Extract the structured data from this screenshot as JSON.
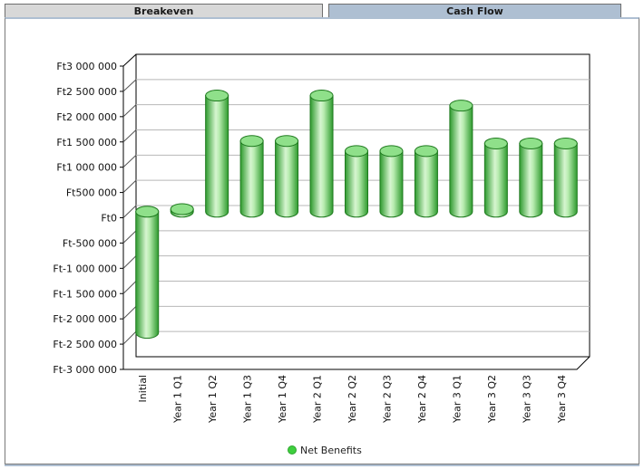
{
  "tabs": [
    {
      "label": "Breakeven",
      "active": false
    },
    {
      "label": "Cash Flow",
      "active": true
    }
  ],
  "chart_data": {
    "type": "bar",
    "bar_shape": "cylinder",
    "categories": [
      "Initial",
      "Year 1 Q1",
      "Year 1 Q2",
      "Year 1 Q3",
      "Year 1 Q4",
      "Year 2 Q1",
      "Year 2 Q2",
      "Year 2 Q3",
      "Year 2 Q4",
      "Year 3 Q1",
      "Year 3 Q2",
      "Year 3 Q3",
      "Year 3 Q4"
    ],
    "series": [
      {
        "name": "Net Benefits",
        "color": "#3ecf3e",
        "values": [
          -2400000,
          50000,
          2300000,
          1400000,
          1400000,
          2300000,
          1200000,
          1200000,
          1200000,
          2100000,
          1350000,
          1350000,
          1350000
        ]
      }
    ],
    "ylim": [
      -3000000,
      3000000
    ],
    "yticks": [
      {
        "value": 3000000,
        "label": "Ft3 000 000"
      },
      {
        "value": 2500000,
        "label": "Ft2 500 000"
      },
      {
        "value": 2000000,
        "label": "Ft2 000 000"
      },
      {
        "value": 1500000,
        "label": "Ft1 500 000"
      },
      {
        "value": 1000000,
        "label": "Ft1 000 000"
      },
      {
        "value": 500000,
        "label": "Ft500 000"
      },
      {
        "value": 0,
        "label": "Ft0"
      },
      {
        "value": -500000,
        "label": "Ft-500 000"
      },
      {
        "value": -1000000,
        "label": "Ft-1 000 000"
      },
      {
        "value": -1500000,
        "label": "Ft-1 500 000"
      },
      {
        "value": -2000000,
        "label": "Ft-2 000 000"
      },
      {
        "value": -2500000,
        "label": "Ft-2 500 000"
      },
      {
        "value": -3000000,
        "label": "Ft-3 000 000"
      }
    ],
    "grid": true,
    "legend_position": "bottom"
  }
}
